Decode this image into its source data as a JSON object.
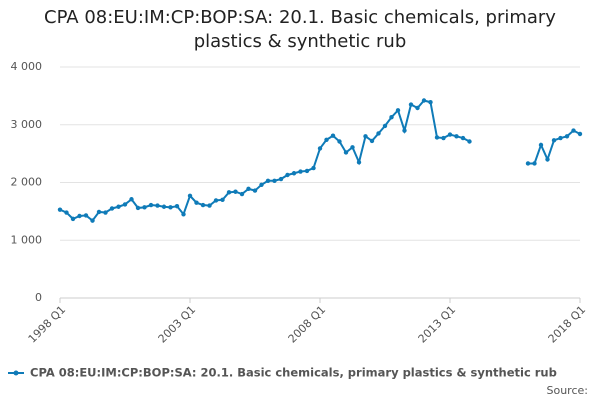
{
  "chart_data": {
    "type": "line",
    "title": "CPA 08:EU:IM:CP:BOP:SA: 20.1. Basic chemicals, primary plastics & synthetic rub",
    "categories": [
      "1998 Q1",
      null,
      null,
      null,
      null,
      null,
      null,
      null,
      null,
      null,
      null,
      null,
      null,
      null,
      null,
      null,
      null,
      null,
      null,
      null,
      "2003 Q1",
      null,
      null,
      null,
      null,
      null,
      null,
      null,
      null,
      null,
      null,
      null,
      null,
      null,
      null,
      null,
      null,
      null,
      null,
      null,
      "2008 Q1",
      null,
      null,
      null,
      null,
      null,
      null,
      null,
      null,
      null,
      null,
      null,
      null,
      null,
      null,
      null,
      null,
      null,
      null,
      null,
      "2013 Q1",
      null,
      null,
      null,
      null,
      null,
      null,
      null,
      null,
      null,
      null,
      null,
      null,
      null,
      null,
      null,
      null,
      null,
      null,
      null,
      "2018 Q1"
    ],
    "series": [
      {
        "name": "CPA 08:EU:IM:CP:BOP:SA: 20.1. Basic chemicals, primary plastics & synthetic rub",
        "color": "#0f7bb8",
        "values": [
          1530,
          1480,
          1370,
          1420,
          1430,
          1340,
          1490,
          1480,
          1550,
          1580,
          1620,
          1710,
          1560,
          1570,
          1610,
          1600,
          1580,
          1570,
          1590,
          1450,
          1770,
          1650,
          1610,
          1600,
          1690,
          1700,
          1830,
          1840,
          1800,
          1890,
          1860,
          1960,
          2030,
          2030,
          2060,
          2130,
          2160,
          2190,
          2200,
          2250,
          2590,
          2740,
          2810,
          2710,
          2520,
          2610,
          2350,
          2800,
          2720,
          2850,
          2980,
          3130,
          3250,
          2900,
          3350,
          3290,
          3420,
          3390,
          2780,
          2770,
          2830,
          2800,
          2770,
          2710,
          null,
          null,
          null,
          null,
          null,
          null,
          null,
          null,
          2330,
          2330,
          2650,
          2400,
          2730,
          2770,
          2800,
          2900,
          2840
        ]
      }
    ],
    "ylim": [
      0,
      4000
    ],
    "yticks": [
      0,
      {
        "value": 1000,
        "label": "1 000"
      },
      {
        "value": 2000,
        "label": "2 000"
      },
      {
        "value": 3000,
        "label": "3 000"
      },
      {
        "value": 4000,
        "label": "4 000"
      }
    ],
    "grid": true,
    "source": "Source:"
  }
}
